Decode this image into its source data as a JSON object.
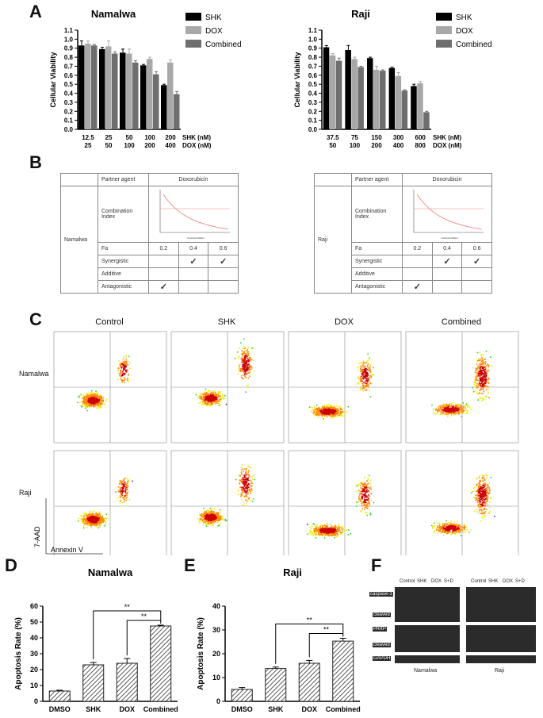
{
  "panels": {
    "A": "A",
    "B": "B",
    "C": "C",
    "D": "D",
    "E": "E",
    "F": "F"
  },
  "chart_data": [
    {
      "id": "A-namalwa",
      "type": "bar",
      "title": "Namalwa",
      "ylabel": "Cellular Viability",
      "ylim": [
        0,
        1.1
      ],
      "yticks": [
        "0.0",
        "0.1",
        "0.2",
        "0.3",
        "0.4",
        "0.5",
        "0.6",
        "0.7",
        "0.8",
        "0.9",
        "1.0",
        "1.1"
      ],
      "categories_shk": [
        "12.5",
        "25",
        "50",
        "100",
        "200"
      ],
      "categories_dox": [
        "25",
        "50",
        "100",
        "200",
        "400"
      ],
      "axis_note_shk": "SHK (nM)",
      "axis_note_dox": "DOX (nM)",
      "series": [
        {
          "name": "SHK",
          "color": "#000000",
          "values": [
            0.93,
            0.89,
            0.85,
            0.71,
            0.49
          ],
          "err": [
            0.05,
            0.02,
            0.04,
            0.01,
            0.01
          ]
        },
        {
          "name": "DOX",
          "color": "#a8a8a8",
          "values": [
            0.95,
            0.92,
            0.84,
            0.78,
            0.74
          ],
          "err": [
            0.03,
            0.06,
            0.05,
            0.02,
            0.03
          ]
        },
        {
          "name": "Combined",
          "color": "#6e6e6e",
          "values": [
            0.93,
            0.84,
            0.74,
            0.61,
            0.39
          ],
          "err": [
            0.01,
            0.02,
            0.02,
            0.03,
            0.03
          ]
        }
      ]
    },
    {
      "id": "A-raji",
      "type": "bar",
      "title": "Raji",
      "ylabel": "Cellular Viability",
      "ylim": [
        0,
        1.1
      ],
      "yticks": [
        "0.0",
        "0.1",
        "0.2",
        "0.3",
        "0.4",
        "0.5",
        "0.6",
        "0.7",
        "0.8",
        "0.9",
        "1.0",
        "1.1"
      ],
      "categories_shk": [
        "37.5",
        "75",
        "150",
        "300",
        "600"
      ],
      "categories_dox": [
        "50",
        "100",
        "200",
        "400",
        "800"
      ],
      "axis_note_shk": "SHK (nM)",
      "axis_note_dox": "DOX (nM)",
      "series": [
        {
          "name": "SHK",
          "color": "#000000",
          "values": [
            0.91,
            0.88,
            0.79,
            0.68,
            0.48
          ],
          "err": [
            0.02,
            0.05,
            0.01,
            0.01,
            0.02
          ]
        },
        {
          "name": "DOX",
          "color": "#a8a8a8",
          "values": [
            0.82,
            0.78,
            0.66,
            0.59,
            0.51
          ],
          "err": [
            0.02,
            0.02,
            0.04,
            0.04,
            0.02
          ]
        },
        {
          "name": "Combined",
          "color": "#6e6e6e",
          "values": [
            0.76,
            0.69,
            0.65,
            0.43,
            0.19
          ],
          "err": [
            0.03,
            0.01,
            0.01,
            0.01,
            0.01
          ]
        }
      ]
    },
    {
      "id": "D",
      "type": "bar",
      "title": "Namalwa",
      "ylabel": "Apoptosis Rate (%)",
      "ylim": [
        0,
        60
      ],
      "yticks": [
        "0",
        "10",
        "20",
        "30",
        "40",
        "50",
        "60"
      ],
      "categories": [
        "DMSO",
        "SHK",
        "DOX",
        "Combined"
      ],
      "values": [
        6.5,
        23,
        24,
        47.5
      ],
      "err": [
        0.5,
        1.5,
        3,
        0.5
      ],
      "sig": [
        "**",
        "**"
      ]
    },
    {
      "id": "E",
      "type": "bar",
      "title": "Raji",
      "ylabel": "Apoptosis Rate (%)",
      "ylim": [
        0,
        40
      ],
      "yticks": [
        "0",
        "10",
        "20",
        "30",
        "40"
      ],
      "categories": [
        "DMSO",
        "SHK",
        "DOX",
        "Combined"
      ],
      "values": [
        5,
        13.8,
        16,
        25.3
      ],
      "err": [
        0.8,
        0.6,
        1.2,
        1.2
      ],
      "sig": [
        "**",
        "**"
      ]
    }
  ],
  "tables": [
    {
      "cell": "Namalwa",
      "partner_label": "Partner agent",
      "partner": "Doxorubicin",
      "ci_label": "Combination Index",
      "fa_label": "Fa",
      "fa": [
        "0.2",
        "0.4",
        "0.6"
      ],
      "rows": [
        {
          "label": "Synergistic",
          "marks": [
            "",
            "✓",
            "✓"
          ]
        },
        {
          "label": "Additive",
          "marks": [
            "",
            "",
            ""
          ]
        },
        {
          "label": "Antagonistic",
          "marks": [
            "✓",
            "",
            ""
          ]
        }
      ],
      "plot_xlabel": "Fractional Effect"
    },
    {
      "cell": "Raji",
      "partner_label": "Partner agent",
      "partner": "Doxorubicin",
      "ci_label": "Combination Index",
      "fa_label": "Fa",
      "fa": [
        "0.2",
        "0.4",
        "0.6"
      ],
      "rows": [
        {
          "label": "Synergistic",
          "marks": [
            "",
            "✓",
            "✓"
          ]
        },
        {
          "label": "Additive",
          "marks": [
            "",
            "",
            ""
          ]
        },
        {
          "label": "Antagonistic",
          "marks": [
            "✓",
            "",
            ""
          ]
        }
      ],
      "plot_xlabel": "Fractional Effect"
    }
  ],
  "flow": {
    "columns": [
      "Control",
      "SHK",
      "DOX",
      "Combined"
    ],
    "rows": [
      "Namalwa",
      "Raji"
    ],
    "yaxis": "7-AAD",
    "xaxis": "Annexin V"
  },
  "western": {
    "lanes_left": [
      "Control",
      "SHK",
      "DOX",
      "S+D"
    ],
    "lanes_right": [
      "Control",
      "SHK",
      "DOX",
      "S+D"
    ],
    "bands": [
      "caspase-3",
      "cleaved",
      "PARP",
      "cleaved",
      "GAPDH"
    ],
    "groups": [
      "Namalwa",
      "Raji"
    ]
  }
}
